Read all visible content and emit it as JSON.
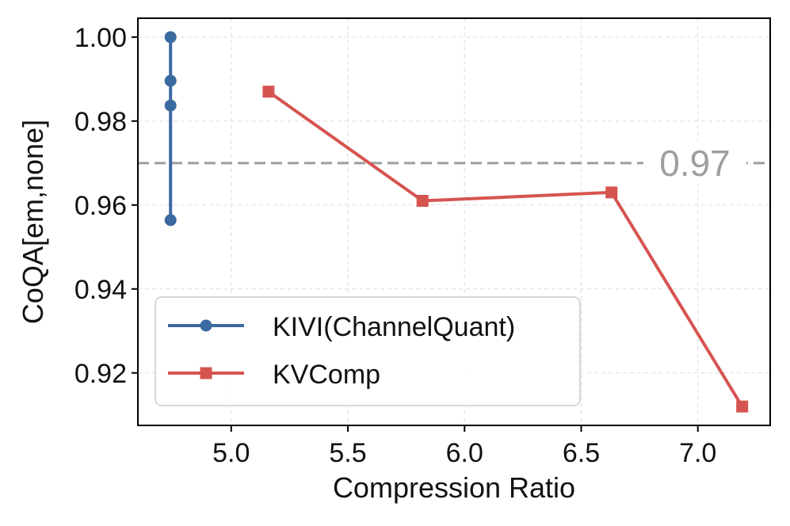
{
  "chart_data": {
    "type": "line",
    "xlabel": "Compression Ratio",
    "ylabel": "CoQA[em,none]",
    "xlim": [
      4.6,
      7.31
    ],
    "ylim": [
      0.9075,
      1.0045
    ],
    "xticks": [
      5.0,
      5.5,
      6.0,
      6.5,
      7.0
    ],
    "xtick_labels": [
      "5.0",
      "5.5",
      "6.0",
      "6.5",
      "7.0"
    ],
    "yticks": [
      0.92,
      0.94,
      0.96,
      0.98,
      1.0
    ],
    "ytick_labels": [
      "0.92",
      "0.94",
      "0.96",
      "0.98",
      "1.00"
    ],
    "grid": true,
    "legend_position": "lower-left",
    "reference_line": {
      "value": 0.97,
      "label": "0.97",
      "color": "#9e9e9e"
    },
    "series": [
      {
        "name": "KIVI(ChannelQuant)",
        "color": "#3b6aa0",
        "marker": "circle",
        "x": [
          4.74,
          4.74,
          4.74,
          4.74
        ],
        "y": [
          1.0,
          0.9896,
          0.9837,
          0.9564
        ]
      },
      {
        "name": "KVComp",
        "color": "#d65450",
        "marker": "square",
        "x": [
          5.16,
          5.82,
          6.63,
          7.19
        ],
        "y": [
          0.987,
          0.961,
          0.963,
          0.912
        ]
      }
    ]
  }
}
